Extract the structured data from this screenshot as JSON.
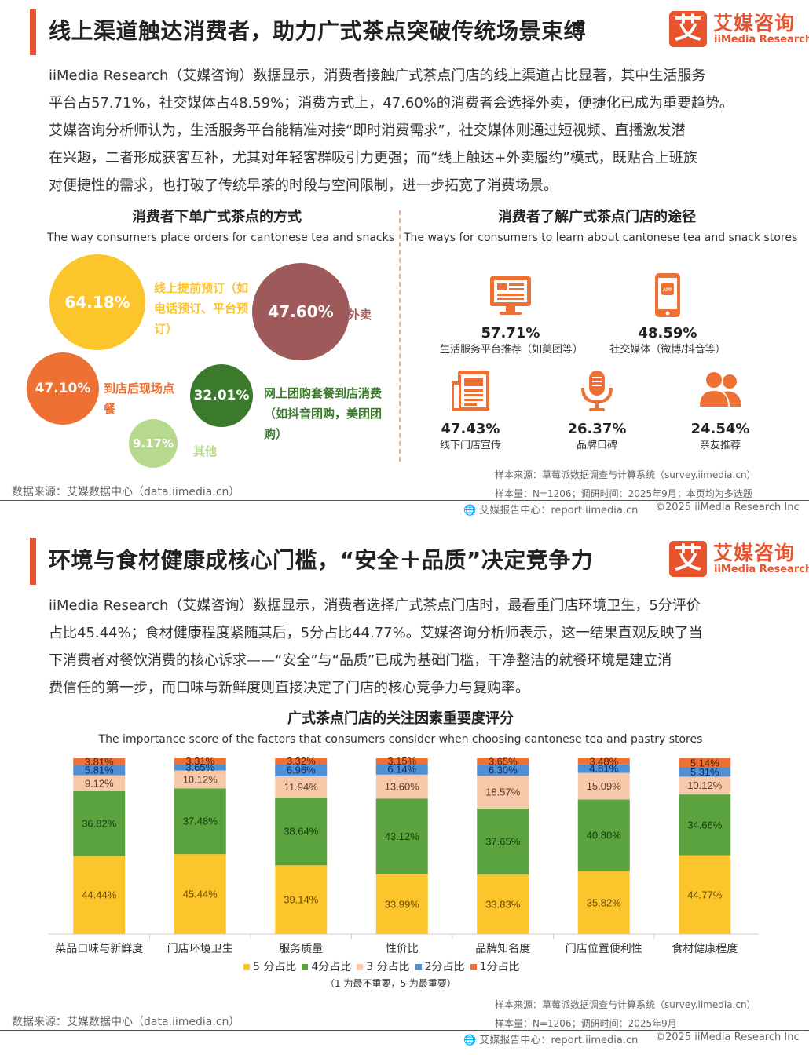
{
  "section1": {
    "title": "线上渠道触达消费者，助力广式茶点突破传统场景束缚",
    "paragraph": [
      "iiMedia Research（艾媒咨询）数据显示，消费者接触广式茶点门店的线上渠道占比显著，其中生活服务",
      "平台占57.71%，社交媒体占48.59%；消费方式上，47.60%的消费者会选择外卖，便捷化已成为重要趋势。",
      "艾媒咨询分析师认为，生活服务平台能精准对接“即时消费需求”，社交媒体则通过短视频、直播激发潜",
      "在兴趣，二者形成获客互补，尤其对年轻客群吸引力更强；而“线上触达+外卖履约”模式，既贴合上班族",
      "对便捷性的需求，也打破了传统早茶的时段与空间限制，进一步拓宽了消费场景。"
    ],
    "left_chart": {
      "title": "消费者下单广式茶点的方式",
      "subtitle_en": "The way consumers place orders for cantonese tea and snacks"
    },
    "right_chart": {
      "title": "消费者了解广式茶点门店的途径",
      "subtitle_en": "The ways for consumers to learn about cantonese tea and snack stores"
    },
    "source": "数据来源：艾媒数据中心（data.iimedia.cn）",
    "sample_source": "样本来源：草莓派数据调查与计算系统（survey.iimedia.cn）",
    "sample_size": "样本量：N=1206；调研时间：2025年9月；本页均为多选题",
    "footer_center": "艾媒报告中心：report.iimedia.cn",
    "footer_right": "©2025   iiMedia Research  Inc"
  },
  "section2": {
    "title": "环境与食材健康成核心门槛，“安全＋品质”决定竞争力",
    "paragraph": [
      "iiMedia Research（艾媒咨询）数据显示，消费者选择广式茶点门店时，最看重门店环境卫生，5分评价",
      "占比45.44%；食材健康程度紧随其后，5分占比44.77%。艾媒咨询分析师表示，这一结果直观反映了当",
      "下消费者对餐饮消费的核心诉求——“安全”与“品质”已成为基础门槛，干净整洁的就餐环境是建立消",
      "费信任的第一步，而口味与新鲜度则直接决定了门店的核心竞争力与复购率。"
    ],
    "chart_title": "广式茶点门店的关注因素重要度评分",
    "chart_subtitle_en": "The importance score of the factors that consumers consider when choosing cantonese tea and pastry stores",
    "legend_note": "（1 为最不重要，5 为最重要）",
    "source": "数据来源：艾媒数据中心（data.iimedia.cn）",
    "sample_source": "样本来源：草莓派数据调查与计算系统（survey.iimedia.cn）",
    "sample_size": "样本量：N=1206；调研时间：2025年9月",
    "footer_center": "艾媒报告中心：report.iimedia.cn",
    "footer_right": "©2025   iiMedia Research  Inc"
  },
  "logo": {
    "mark": "艾",
    "cn": "艾媒咨询",
    "en": "iiMedia Research"
  },
  "colors": {
    "accent": "#e8542e",
    "yellow": "#fcc52c",
    "green": "#5aa33f",
    "peach": "#f7c8a9",
    "blue": "#4f8fd6",
    "orange": "#ee7133",
    "rose": "#9e5a5b",
    "dark_green": "#3b7a2d",
    "light_green": "#b7d98f"
  },
  "chart_data": [
    {
      "type": "bubble",
      "title": "消费者下单广式茶点的方式",
      "items": [
        {
          "name": "线上提前预订（如电话预订、平台预订）",
          "value": 64.18,
          "label": "64.18%",
          "color": "#fcc52c"
        },
        {
          "name": "点外卖",
          "value": 47.6,
          "label": "47.60%",
          "color": "#9e5a5b"
        },
        {
          "name": "到店后现场点餐",
          "value": 47.1,
          "label": "47.10%",
          "color": "#ee7133"
        },
        {
          "name": "网上团购套餐到店消费（如抖音团购，美团团购）",
          "value": 32.01,
          "label": "32.01%",
          "color": "#3b7a2d"
        },
        {
          "name": "其他",
          "value": 9.17,
          "label": "9.17%",
          "color": "#b7d98f"
        }
      ]
    },
    {
      "type": "pictogram",
      "title": "消费者了解广式茶点门店的途径",
      "items": [
        {
          "name": "生活服务平台推荐（如美团等）",
          "value": 57.71,
          "label": "57.71%",
          "icon": "monitor-icon"
        },
        {
          "name": "社交媒体（微博/抖音等）",
          "value": 48.59,
          "label": "48.59%",
          "icon": "phone-app-icon"
        },
        {
          "name": "线下门店宣传",
          "value": 47.43,
          "label": "47.43%",
          "icon": "document-icon"
        },
        {
          "name": "品牌口碑",
          "value": 26.37,
          "label": "26.37%",
          "icon": "microphone-icon"
        },
        {
          "name": "亲友推荐",
          "value": 24.54,
          "label": "24.54%",
          "icon": "people-icon"
        }
      ]
    },
    {
      "type": "bar",
      "stacked": true,
      "title": "广式茶点门店的关注因素重要度评分",
      "categories": [
        "菜品口味与新鲜度",
        "门店环境卫生",
        "服务质量",
        "性价比",
        "品牌知名度",
        "门店位置便利性",
        "食材健康程度"
      ],
      "ylim": [
        0,
        100
      ],
      "series": [
        {
          "name": "5 分占比",
          "color": "#fcc52c",
          "text_color": "#6b4a00",
          "values": [
            44.44,
            45.44,
            39.14,
            33.99,
            33.83,
            35.82,
            44.77
          ],
          "labels": [
            "44.44%",
            "45.44%",
            "39.14%",
            "33.99%",
            "33.83%",
            "35.82%",
            "44.77%"
          ]
        },
        {
          "name": "4分占比",
          "color": "#5aa33f",
          "text_color": "#123d0a",
          "values": [
            36.82,
            37.48,
            38.64,
            43.12,
            37.65,
            40.8,
            34.66
          ],
          "labels": [
            "36.82%",
            "37.48%",
            "38.64%",
            "43.12%",
            "37.65%",
            "40.80%",
            "34.66%"
          ]
        },
        {
          "name": "3 分占比",
          "color": "#f7c8a9",
          "text_color": "#5a3a28",
          "values": [
            9.12,
            10.12,
            11.94,
            13.6,
            18.57,
            15.09,
            10.12
          ],
          "labels": [
            "9.12%",
            "10.12%",
            "11.94%",
            "13.60%",
            "18.57%",
            "15.09%",
            "10.12%"
          ]
        },
        {
          "name": "2分占比",
          "color": "#4f8fd6",
          "text_color": "#0e2c5a",
          "values": [
            5.81,
            3.65,
            6.96,
            6.14,
            6.3,
            4.81,
            5.31
          ],
          "labels": [
            "5.81%",
            "3.65%",
            "6.96%",
            "6.14%",
            "6.30%",
            "4.81%",
            "5.31%"
          ]
        },
        {
          "name": "1分占比",
          "color": "#ee7133",
          "text_color": "#5a1e04",
          "values": [
            3.81,
            3.31,
            3.32,
            3.15,
            3.65,
            3.48,
            5.14
          ],
          "labels": [
            "3.81%",
            "3.31%",
            "3.32%",
            "3.15%",
            "3.65%",
            "3.48%",
            "5.14%"
          ]
        }
      ]
    }
  ]
}
